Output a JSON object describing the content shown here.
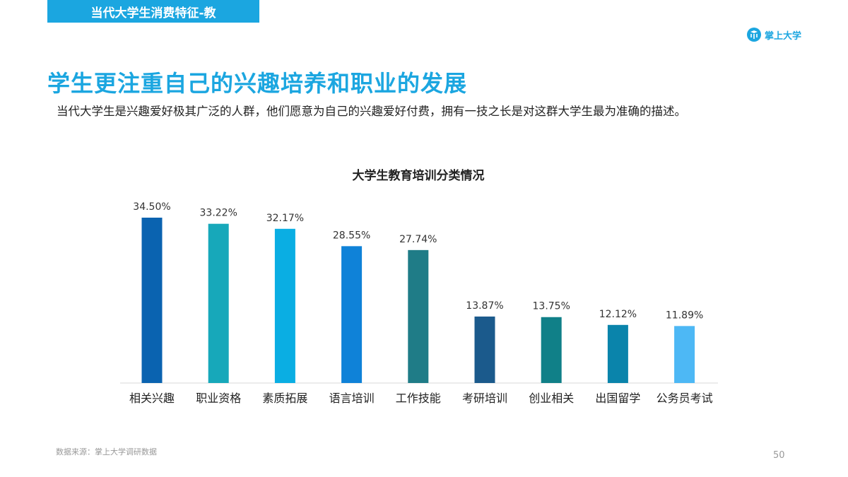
{
  "header": {
    "section_title": "当代大学生消费特征-教",
    "logo_text": "掌上大学"
  },
  "headline": "学生更注重自己的兴趣培养和职业的发展",
  "description": "当代大学生是兴趣爱好极其广泛的人群，他们愿意为自己的兴趣爱好付费，拥有一技之长是对这群大学生最为准确的描述。",
  "chart_data": {
    "type": "bar",
    "title": "大学生教育培训分类情况",
    "categories": [
      "相关兴趣",
      "职业资格",
      "素质拓展",
      "语言培训",
      "工作技能",
      "考研培训",
      "创业相关",
      "出国留学",
      "公务员考试"
    ],
    "values": [
      34.5,
      33.22,
      32.17,
      28.55,
      27.74,
      13.87,
      13.75,
      12.12,
      11.89
    ],
    "data_labels": [
      "34.50%",
      "33.22%",
      "32.17%",
      "28.55%",
      "27.74%",
      "13.87%",
      "13.75%",
      "12.12%",
      "11.89%"
    ],
    "colors": [
      "#0a63b0",
      "#17a8ba",
      "#0aaee3",
      "#0f82d8",
      "#1f7c87",
      "#1b5a8c",
      "#108088",
      "#0a84ab",
      "#4db8f5"
    ],
    "ylim": [
      0,
      34.5
    ],
    "grid": false,
    "legend": "none"
  },
  "footer": {
    "source": "数据来源：掌上大学调研数据",
    "page_number": "50"
  }
}
